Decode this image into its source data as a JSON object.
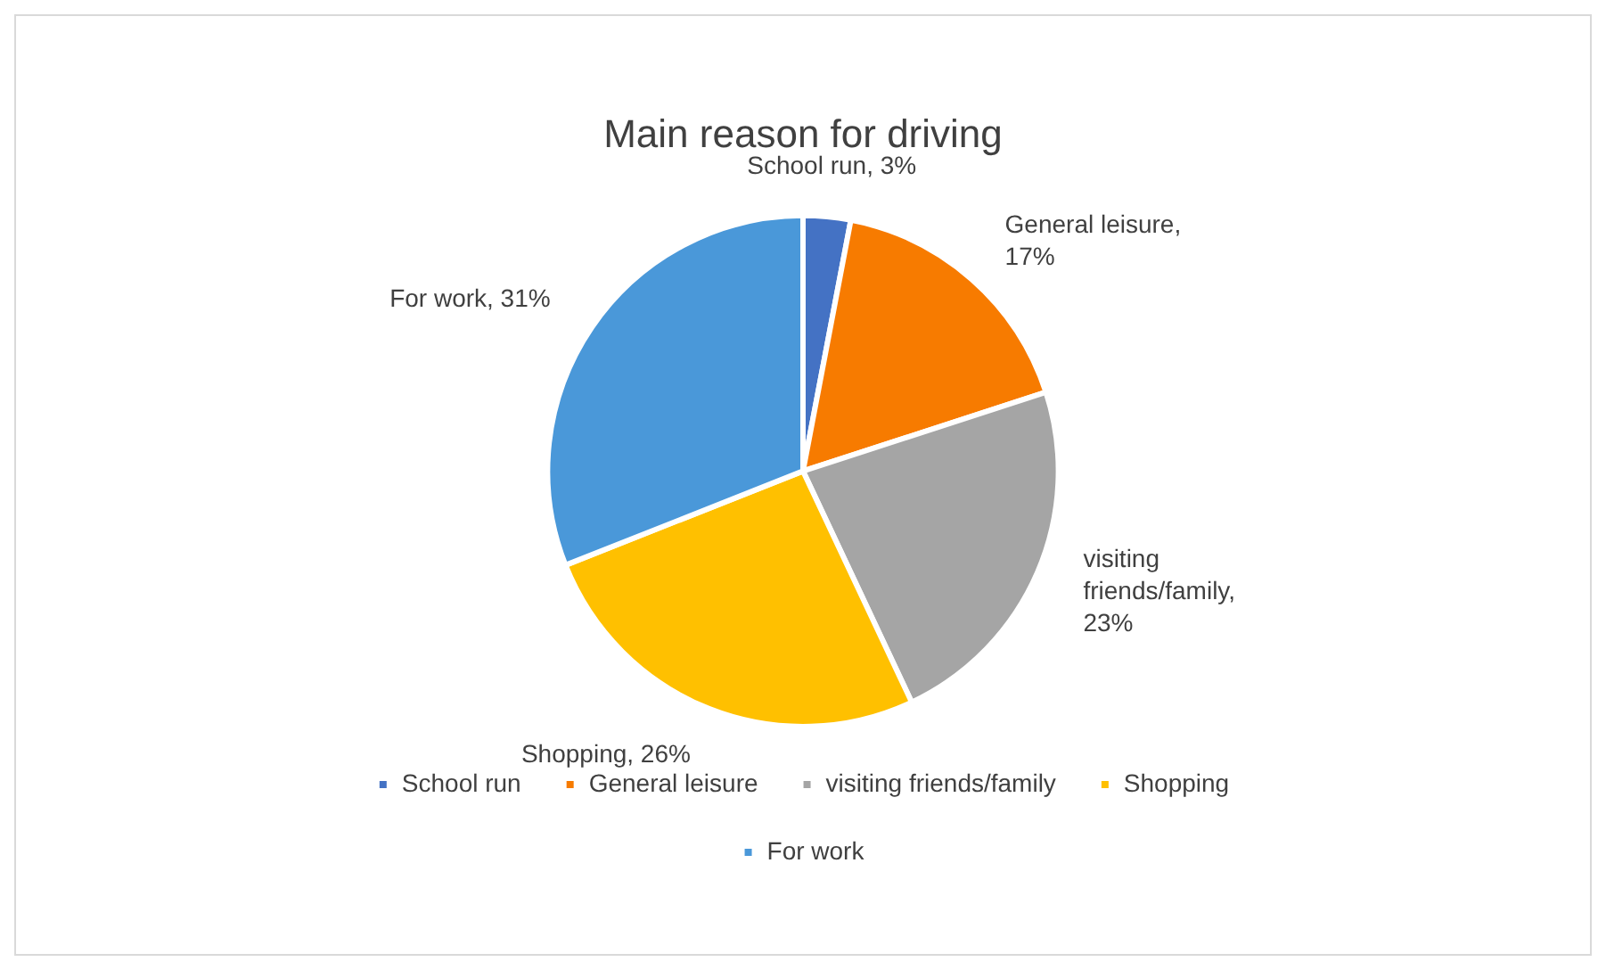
{
  "chart_data": {
    "type": "pie",
    "title": "Main reason for driving",
    "categories": [
      "School run",
      "General leisure",
      "visiting friends/family",
      "Shopping",
      "For work"
    ],
    "values": [
      3,
      17,
      23,
      26,
      31
    ],
    "value_labels": [
      "School run, 3%",
      "General leisure, 17%",
      "visiting friends/family, 23%",
      "Shopping, 26%",
      "For work, 31%"
    ],
    "colors": [
      "#4472c4",
      "#f77b00",
      "#a5a5a5",
      "#ffc000",
      "#4a98d9"
    ],
    "legend": "bottom"
  }
}
